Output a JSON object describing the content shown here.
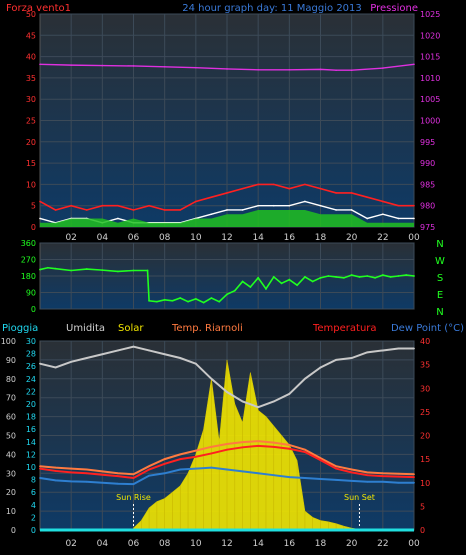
{
  "chart_data": [
    {
      "type": "line",
      "title": "24 hour graph day: 11 Maggio 2013",
      "left_label": "Forza vento1",
      "right_label": "Pressione",
      "x_ticks": [
        "02",
        "04",
        "06",
        "08",
        "10",
        "12",
        "14",
        "16",
        "18",
        "20",
        "22",
        "00"
      ],
      "y_left_ticks": [
        "0",
        "5",
        "10",
        "15",
        "20",
        "25",
        "30",
        "35",
        "40",
        "45",
        "50"
      ],
      "y_left_range": [
        0,
        50
      ],
      "y_right_ticks": [
        "975",
        "980",
        "985",
        "990",
        "995",
        "1000",
        "1005",
        "1010",
        "1015",
        "1020",
        "1025"
      ],
      "y_right_range": [
        975,
        1025
      ],
      "series": [
        {
          "name": "Pressione",
          "color": "#e030e0",
          "axis": "right",
          "x": [
            0,
            2,
            4,
            6,
            8,
            10,
            12,
            14,
            16,
            18,
            19,
            20,
            22,
            24
          ],
          "values": [
            1013.2,
            1013.0,
            1012.9,
            1012.8,
            1012.6,
            1012.4,
            1012.1,
            1011.9,
            1011.9,
            1012.0,
            1011.8,
            1011.8,
            1012.3,
            1013.2
          ]
        },
        {
          "label_key": "gust",
          "color": "#ff2020",
          "axis": "left",
          "x": [
            0,
            1,
            2,
            3,
            4,
            5,
            6,
            7,
            8,
            9,
            10,
            11,
            12,
            13,
            14,
            15,
            16,
            17,
            18,
            19,
            20,
            21,
            22,
            23,
            24
          ],
          "values": [
            6,
            4,
            5,
            4,
            5,
            5,
            4,
            5,
            4,
            4,
            6,
            7,
            8,
            9,
            10,
            10,
            9,
            10,
            9,
            8,
            8,
            7,
            6,
            5,
            5
          ]
        },
        {
          "label_key": "wind",
          "color": "#ffffff",
          "axis": "left",
          "x": [
            0,
            1,
            2,
            3,
            4,
            5,
            6,
            7,
            8,
            9,
            10,
            11,
            12,
            13,
            14,
            15,
            16,
            17,
            18,
            19,
            20,
            21,
            22,
            23,
            24
          ],
          "values": [
            2,
            1,
            2,
            2,
            1,
            2,
            1,
            1,
            1,
            1,
            2,
            3,
            4,
            4,
            5,
            5,
            5,
            6,
            5,
            4,
            4,
            2,
            3,
            2,
            2
          ]
        },
        {
          "label_key": "avg",
          "color": "#20c020",
          "axis": "left",
          "x": [
            0,
            1,
            2,
            3,
            4,
            5,
            6,
            7,
            8,
            9,
            10,
            11,
            12,
            13,
            14,
            15,
            16,
            17,
            18,
            19,
            20,
            21,
            22,
            23,
            24
          ],
          "values": [
            1,
            1,
            2,
            2,
            2,
            1,
            2,
            1,
            1,
            1,
            2,
            2,
            3,
            3,
            4,
            4,
            4,
            4,
            3,
            3,
            3,
            1,
            1,
            1,
            1
          ]
        }
      ]
    },
    {
      "type": "line",
      "y_ticks": [
        "0",
        "90",
        "180",
        "270",
        "360"
      ],
      "y_range": [
        0,
        360
      ],
      "compass": [
        "N",
        "W",
        "S",
        "E",
        "N"
      ],
      "series": [
        {
          "label_key": "direction",
          "color": "#20ff20",
          "x": [
            0,
            0.5,
            1,
            2,
            3,
            4,
            5,
            6,
            6.9,
            7,
            7.5,
            8,
            8.5,
            9,
            9.5,
            10,
            10.5,
            11,
            11.5,
            12,
            12.5,
            13,
            13.5,
            14,
            14.5,
            15,
            15.5,
            16,
            16.5,
            17,
            17.5,
            18,
            18.5,
            19,
            19.5,
            20,
            20.5,
            21,
            21.5,
            22,
            22.5,
            23,
            23.5,
            24
          ],
          "values": [
            215,
            225,
            220,
            210,
            218,
            212,
            205,
            210,
            210,
            45,
            40,
            50,
            45,
            60,
            40,
            55,
            35,
            60,
            40,
            80,
            100,
            150,
            120,
            170,
            110,
            175,
            140,
            160,
            130,
            175,
            150,
            170,
            180,
            175,
            170,
            185,
            175,
            180,
            170,
            185,
            175,
            180,
            185,
            180
          ]
        }
      ]
    },
    {
      "type": "line",
      "legend": [
        "Pioggia",
        "Umidita",
        "Solar",
        "Temp. Riarnoli",
        "Temperatura",
        "Dew Point (°C)"
      ],
      "y_left_ticks": [
        "0",
        "10",
        "20",
        "30",
        "40",
        "50",
        "60",
        "70",
        "80",
        "90",
        "100"
      ],
      "y_left_range": [
        0,
        100
      ],
      "y_mid_ticks": [
        "0",
        "2",
        "4",
        "6",
        "8",
        "10",
        "12",
        "14",
        "16",
        "18",
        "20",
        "22",
        "24",
        "26",
        "28",
        "30"
      ],
      "y_mid_range": [
        0,
        30
      ],
      "y_right_ticks": [
        "0",
        "5",
        "10",
        "15",
        "20",
        "25",
        "30",
        "35",
        "40"
      ],
      "y_right_range": [
        0,
        40
      ],
      "annotations": [
        {
          "label": "Sun Rise",
          "x": 6.0
        },
        {
          "label": "Sun Set",
          "x": 20.5
        }
      ],
      "series": [
        {
          "name": "Umidita",
          "color": "#c8c8c8",
          "axis": "left",
          "x": [
            0,
            1,
            2,
            3,
            4,
            5,
            6,
            7,
            8,
            9,
            10,
            11,
            12,
            13,
            14,
            15,
            16,
            17,
            18,
            19,
            20,
            21,
            22,
            23,
            24
          ],
          "values": [
            88,
            86,
            89,
            91,
            93,
            95,
            97,
            95,
            93,
            91,
            88,
            80,
            73,
            68,
            65,
            68,
            72,
            80,
            86,
            90,
            91,
            94,
            95,
            96,
            96
          ]
        },
        {
          "name": "Temp. Riarnoli",
          "color": "#ff7a40",
          "axis": "right",
          "x": [
            0,
            1,
            2,
            3,
            4,
            5,
            6,
            7,
            8,
            9,
            10,
            11,
            12,
            13,
            14,
            15,
            16,
            17,
            18,
            19,
            20,
            21,
            22,
            23,
            24
          ],
          "values": [
            13.5,
            13.2,
            13.0,
            12.8,
            12.4,
            12.0,
            11.8,
            13.5,
            15.0,
            16.0,
            16.8,
            17.6,
            18.2,
            18.6,
            18.8,
            18.5,
            18.0,
            17.0,
            15.2,
            13.5,
            12.8,
            12.2,
            12.0,
            11.9,
            11.8
          ]
        },
        {
          "name": "Temperatura",
          "color": "#ff2020",
          "axis": "right",
          "x": [
            0,
            1,
            2,
            3,
            4,
            5,
            6,
            7,
            8,
            9,
            10,
            11,
            12,
            13,
            14,
            15,
            16,
            17,
            18,
            19,
            20,
            21,
            22,
            23,
            24
          ],
          "values": [
            13.0,
            12.5,
            12.2,
            12.0,
            11.7,
            11.4,
            11.0,
            12.8,
            14.0,
            15.0,
            15.5,
            16.2,
            17.0,
            17.5,
            17.8,
            17.6,
            17.2,
            16.5,
            14.8,
            13.0,
            12.2,
            11.6,
            11.4,
            11.3,
            11.2
          ]
        },
        {
          "name": "Dew Point (°C)",
          "color": "#2e7fd0",
          "axis": "right",
          "x": [
            0,
            1,
            2,
            3,
            4,
            5,
            6,
            7,
            8,
            9,
            10,
            11,
            12,
            13,
            14,
            15,
            16,
            17,
            18,
            19,
            20,
            21,
            22,
            23,
            24
          ],
          "values": [
            11.0,
            10.5,
            10.3,
            10.2,
            10.0,
            9.8,
            9.7,
            11.5,
            12.0,
            12.8,
            13.0,
            13.2,
            12.8,
            12.4,
            12.0,
            11.6,
            11.2,
            11.0,
            10.8,
            10.6,
            10.4,
            10.2,
            10.2,
            10.0,
            10.0
          ]
        },
        {
          "name": "Solar",
          "color": "#f2e600",
          "axis": "mid",
          "x": [
            6.0,
            6.5,
            7.0,
            7.5,
            8.0,
            8.5,
            9.0,
            9.5,
            10.0,
            10.5,
            11.0,
            11.5,
            12.0,
            12.5,
            13.0,
            13.5,
            14.0,
            14.5,
            15.0,
            15.5,
            16.0,
            16.5,
            17.0,
            17.5,
            18.0,
            18.5,
            19.0,
            19.5,
            20.0,
            20.5
          ],
          "values": [
            0.3,
            1.5,
            3.5,
            4.5,
            5.0,
            6.0,
            7.0,
            9.0,
            12.0,
            16.0,
            24.0,
            14.0,
            27.0,
            20.0,
            17.0,
            25.0,
            19.0,
            18.0,
            16.5,
            15.0,
            13.5,
            11.0,
            3.0,
            2.0,
            1.5,
            1.3,
            1.0,
            0.6,
            0.3,
            0.1
          ]
        },
        {
          "name": "Pioggia",
          "color": "#20e0e0",
          "axis": "mid",
          "x": [
            0,
            24
          ],
          "values": [
            0,
            0
          ]
        }
      ]
    }
  ]
}
